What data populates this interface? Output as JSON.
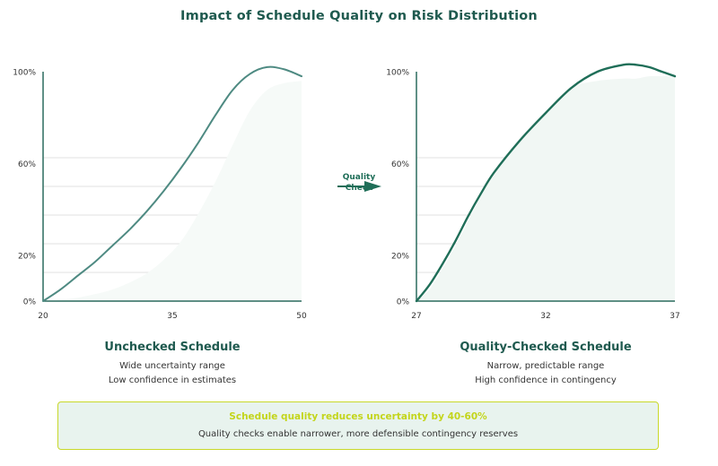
{
  "title": "Impact of Schedule Quality on Risk Distribution",
  "colors": {
    "title": "#1f5a4f",
    "curve_unchecked": "#4e8a82",
    "curve_checked": "#1f6e58",
    "axis": "#2c6b5e",
    "grid": "#e6e6e6",
    "callout_border": "#c8d82a",
    "callout_bg": "#e8f3ee",
    "callout_heading": "#c3d51b"
  },
  "arrow": {
    "label_line1": "Quality",
    "label_line2": "Check"
  },
  "chart_data": [
    {
      "type": "line",
      "panel_title": "Unchecked Schedule",
      "captions": [
        "Wide uncertainty range",
        "Low confidence in estimates"
      ],
      "x_ticks": [
        "20",
        "35",
        "50"
      ],
      "y_ticks": [
        "0%",
        "20%",
        "60%",
        "100%"
      ],
      "xlim": [
        20,
        50
      ],
      "ylim": [
        0,
        100
      ],
      "grid": true,
      "x": [
        20,
        22,
        24,
        26,
        28,
        30,
        32,
        34,
        36,
        38,
        40,
        42,
        44,
        46,
        48,
        50
      ],
      "y": [
        0,
        5,
        11,
        17,
        24,
        31,
        39,
        48,
        58,
        69,
        81,
        92,
        99,
        102,
        101,
        98
      ],
      "shaded_band_y": [
        0,
        0.5,
        1.5,
        3,
        5,
        8,
        12,
        18,
        26,
        38,
        52,
        68,
        83,
        92,
        95,
        96
      ]
    },
    {
      "type": "line",
      "panel_title": "Quality-Checked Schedule",
      "captions": [
        "Narrow, predictable range",
        "High confidence in contingency"
      ],
      "x_ticks": [
        "27",
        "32",
        "37"
      ],
      "y_ticks": [
        "0%",
        "20%",
        "60%",
        "100%"
      ],
      "xlim": [
        27,
        37
      ],
      "ylim": [
        0,
        100
      ],
      "grid": true,
      "x": [
        27,
        27.5,
        28,
        28.5,
        29,
        29.5,
        30,
        31,
        32,
        33,
        34,
        35,
        35.5,
        36,
        36.5,
        37
      ],
      "y": [
        0,
        7,
        16,
        26,
        37,
        47,
        56,
        70,
        82,
        93,
        100,
        103,
        103,
        102,
        100,
        98
      ],
      "shaded_band_y": [
        0,
        5,
        14,
        24,
        35,
        46,
        55,
        70,
        83,
        93,
        96,
        97,
        97,
        98,
        98,
        98
      ]
    }
  ],
  "callout": {
    "heading": "Schedule quality reduces uncertainty by 40-60%",
    "body": "Quality checks enable narrower, more defensible contingency reserves"
  }
}
